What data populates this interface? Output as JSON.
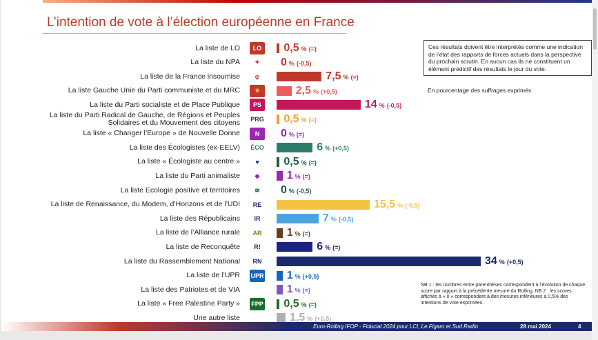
{
  "title": "L’intention de vote à l’élection européenne en France",
  "note": "Ces résultats doivent être interprétés comme une indication de l’état des rapports de forces actuels dans la perspective du prochain scrutin. En aucun cas ils ne constituent un élément prédictif des résultats le jour du vote.",
  "note_sub": "En pourcentage des suffrages exprimés",
  "footnote": "NB 1 : les nombres entre parenthèses correspondent à l’évolution de chaque score par rapport à la précédente mesure du Rolling. NB 2 : les scores affichés à « 0 » correspondent à des mesures inférieures à 0,5% des intentions de vote exprimées.",
  "footer": {
    "source": "Euro-Rolling IFOP - Fiducial 2024 pour LCI, Le Figaro et Sud Radio",
    "date": "28 mai 2024",
    "page": "4"
  },
  "pct_sign": "%",
  "chart_data": {
    "type": "bar",
    "orientation": "horizontal",
    "categories": [
      "La liste de LO",
      "La liste du NPA",
      "La liste de la France insoumise",
      "La liste Gauche Unie du Parti communiste et du MRC",
      "La liste du Parti socialiste et de Place Publique",
      "La liste du Parti Radical de Gauche, de Régions et Peuples Solidaires et du Mouvement des citoyens",
      "La liste « Changer l’Europe » de Nouvelle Donne",
      "La liste des Écologistes (ex-EELV)",
      "La liste « Écologiste au centre »",
      "La liste du Parti animaliste",
      "La liste Ecologie positive et territoires",
      "La liste de Renaissance, du Modem, d’Horizons et de l’UDI",
      "La liste des Républicains",
      "La liste de l’Alliance rurale",
      "La liste de Reconquête",
      "La liste du Rassemblement National",
      "La liste de l’UPR",
      "La liste des Patriotes et de VIA",
      "La liste « Free Palestine Party »",
      "Une autre liste"
    ],
    "values": [
      0.5,
      0,
      7.5,
      2.5,
      14,
      0.5,
      0,
      6,
      0.5,
      1,
      0,
      15.5,
      7,
      1,
      6,
      34,
      1,
      1,
      0.5,
      1.5
    ],
    "value_labels": [
      "0,5",
      "0",
      "7,5",
      "2,5",
      "14",
      "0,5",
      "0",
      "6",
      "0,5",
      "1",
      "0",
      "15,5",
      "7",
      "1",
      "6",
      "34",
      "1",
      "1",
      "0,5",
      "1,5"
    ],
    "changes": [
      "(=)",
      "(-0,5)",
      "(=)",
      "(+0,5)",
      "(-0,5)",
      "(=)",
      "(=)",
      "(+0,5)",
      "(=)",
      "(=)",
      "(-0,5)",
      "(-0,5)",
      "(-0,5)",
      "(=)",
      "(=)",
      "(+0,5)",
      "(+0,5)",
      "(=)",
      "(=)",
      "(+0,5)"
    ],
    "colors": [
      "#c0392b",
      "#c0392b",
      "#c0392b",
      "#e85d5d",
      "#c2185b",
      "#f0a030",
      "#9c27b0",
      "#2e7d6b",
      "#1b5e4a",
      "#9c27b0",
      "#1b5e4a",
      "#f5c242",
      "#4da3e0",
      "#6b3a1e",
      "#1a237e",
      "#1a2a6c",
      "#1565c0",
      "#7e57c2",
      "#1b6e2a",
      "#b0b0b0"
    ],
    "logos": [
      {
        "text": "LO",
        "bg": "#c0392b",
        "fg": "#ffffff"
      },
      {
        "text": "✦",
        "bg": "#ffffff",
        "fg": "#c0392b"
      },
      {
        "text": "φ",
        "bg": "#ffffff",
        "fg": "#c0392b"
      },
      {
        "text": "★",
        "bg": "#c0392b",
        "fg": "#f5c242"
      },
      {
        "text": "PS",
        "bg": "#c2185b",
        "fg": "#ffffff"
      },
      {
        "text": "PRG",
        "bg": "#ffffff",
        "fg": "#333333"
      },
      {
        "text": "N",
        "bg": "#9c27b0",
        "fg": "#ffffff"
      },
      {
        "text": "ÉCO",
        "bg": "#ffffff",
        "fg": "#2e7d6b"
      },
      {
        "text": "♥",
        "bg": "#ffffff",
        "fg": "#1a2a6c"
      },
      {
        "text": "◆",
        "bg": "#ffffff",
        "fg": "#9c27b0"
      },
      {
        "text": "≋",
        "bg": "#ffffff",
        "fg": "#1b5e4a"
      },
      {
        "text": "RE",
        "bg": "#ffffff",
        "fg": "#1a2a6c"
      },
      {
        "text": "lR",
        "bg": "#ffffff",
        "fg": "#1a2a6c"
      },
      {
        "text": "AR",
        "bg": "#ffffff",
        "fg": "#6b8e23"
      },
      {
        "text": "R!",
        "bg": "#ffffff",
        "fg": "#1a237e"
      },
      {
        "text": "RN",
        "bg": "#ffffff",
        "fg": "#1a2a6c"
      },
      {
        "text": "UPR",
        "bg": "#1565c0",
        "fg": "#ffffff"
      },
      {
        "text": "",
        "bg": "#ffffff",
        "fg": "#ffffff"
      },
      {
        "text": "FPP",
        "bg": "#1b6e2a",
        "fg": "#ffffff"
      },
      {
        "text": "",
        "bg": "#ffffff",
        "fg": "#ffffff"
      }
    ],
    "xlim": [
      0,
      34
    ],
    "unit": "%"
  }
}
